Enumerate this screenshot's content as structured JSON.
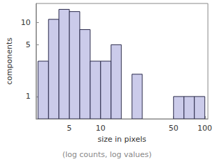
{
  "chart_data": {
    "type": "histogram",
    "subtitle": "(log counts, log values)",
    "xlabel": "size in pixels",
    "ylabel": "components",
    "bins": [
      2.51,
      3.16,
      3.98,
      5.01,
      6.31,
      7.94,
      10,
      12.6,
      15.8,
      20,
      25.1,
      31.6,
      39.8,
      50.1,
      63.1,
      79.4,
      100
    ],
    "counts": [
      3,
      11,
      15,
      14,
      8,
      3,
      3,
      5,
      0,
      2,
      0,
      0,
      0,
      1,
      1,
      1
    ],
    "color": "#cbcbea",
    "xlim": [
      2.4,
      107
    ],
    "xticks": [
      5,
      10,
      50,
      100
    ],
    "ylim": [
      0.5,
      18
    ],
    "yticks": [
      1,
      5,
      10
    ],
    "log": true,
    "grid": false
  }
}
